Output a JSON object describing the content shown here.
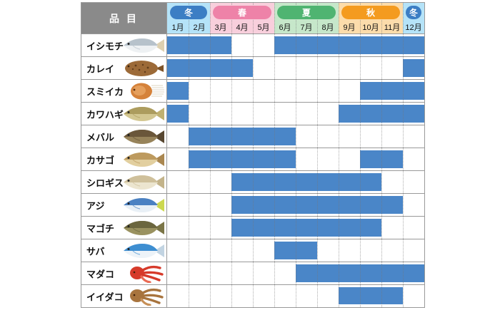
{
  "header": {
    "item_label": "品 目",
    "months": [
      "1月",
      "2月",
      "3月",
      "4月",
      "5月",
      "6月",
      "7月",
      "8月",
      "9月",
      "10月",
      "11月",
      "12月"
    ],
    "seasons": [
      {
        "id": "winter",
        "label": "冬",
        "start": 1,
        "end": 2,
        "pill_color": "#3c7ec4",
        "band_color": "#b5e3f8"
      },
      {
        "id": "spring",
        "label": "春",
        "start": 3,
        "end": 5,
        "pill_color": "#ee82a8",
        "band_color": "#f8cfdc"
      },
      {
        "id": "summer",
        "label": "夏",
        "start": 6,
        "end": 8,
        "pill_color": "#4fb471",
        "band_color": "#c6e7ca"
      },
      {
        "id": "autumn",
        "label": "秋",
        "start": 9,
        "end": 11,
        "pill_color": "#f49b1f",
        "band_color": "#fcdcab"
      },
      {
        "id": "winter-dec",
        "label": "冬",
        "start": 12,
        "end": 12,
        "pill_color": "#3c7ec4",
        "band_color": "#b5e3f8"
      }
    ]
  },
  "rows": [
    {
      "label": "イシモチ",
      "icon": "ishimochi-fish-icon",
      "type": "fish",
      "colors": {
        "body": "#b7c2cb",
        "belly": "#eef1f3",
        "tail": "#ddd0b0"
      },
      "bars": [
        [
          1,
          3
        ],
        [
          6,
          12
        ]
      ]
    },
    {
      "label": "カレイ",
      "icon": "karei-flatfish-icon",
      "type": "flatfish",
      "colors": {
        "body": "#9c6a38",
        "belly": "#b98a52",
        "tail": "#7e5327"
      },
      "bars": [
        [
          1,
          4
        ],
        [
          12,
          12
        ]
      ]
    },
    {
      "label": "スミイカ",
      "icon": "sumiika-cuttlefish-icon",
      "type": "cuttlefish",
      "colors": {
        "body": "#d5823a",
        "belly": "#f2b878",
        "tail": "#eae4d8"
      },
      "bars": [
        [
          1,
          1
        ],
        [
          10,
          12
        ]
      ]
    },
    {
      "label": "カワハギ",
      "icon": "kawahagi-fish-icon",
      "type": "fish",
      "colors": {
        "body": "#ac9c5e",
        "belly": "#d3c791",
        "tail": "#bfb070"
      },
      "bars": [
        [
          1,
          1
        ],
        [
          9,
          12
        ]
      ]
    },
    {
      "label": "メバル",
      "icon": "mebaru-fish-icon",
      "type": "fish",
      "colors": {
        "body": "#6a563a",
        "belly": "#97835a",
        "tail": "#584730"
      },
      "bars": [
        [
          2,
          6
        ]
      ]
    },
    {
      "label": "カサゴ",
      "icon": "kasago-fish-icon",
      "type": "fish",
      "colors": {
        "body": "#bd9a5e",
        "belly": "#e2cf9f",
        "tail": "#aa8750"
      },
      "bars": [
        [
          2,
          6
        ],
        [
          10,
          11
        ]
      ]
    },
    {
      "label": "シロギス",
      "icon": "shirogisu-fish-icon",
      "type": "fish",
      "colors": {
        "body": "#cfc09b",
        "belly": "#ece5cf",
        "tail": "#c3b38a"
      },
      "bars": [
        [
          4,
          10
        ]
      ]
    },
    {
      "label": "アジ",
      "icon": "aji-fish-icon",
      "type": "fish",
      "colors": {
        "body": "#4b81c2",
        "belly": "#e9f0f6",
        "tail": "#ccd84f"
      },
      "bars": [
        [
          4,
          11
        ]
      ]
    },
    {
      "label": "マゴチ",
      "icon": "magochi-fish-icon",
      "type": "fish",
      "colors": {
        "body": "#6b663e",
        "belly": "#9a9260",
        "tail": "#7b7547"
      },
      "bars": [
        [
          4,
          10
        ]
      ]
    },
    {
      "label": "サバ",
      "icon": "saba-fish-icon",
      "type": "fish",
      "colors": {
        "body": "#3e8ed1",
        "belly": "#edf3f8",
        "tail": "#c2d4e2"
      },
      "bars": [
        [
          6,
          7
        ]
      ]
    },
    {
      "label": "マダコ",
      "icon": "madako-octopus-icon",
      "type": "octopus",
      "colors": {
        "body": "#d63a2a",
        "belly": "#ea6a54"
      },
      "bars": [
        [
          7,
          12
        ]
      ]
    },
    {
      "label": "イイダコ",
      "icon": "iidako-octopus-icon",
      "type": "octopus",
      "colors": {
        "body": "#a8743e",
        "belly": "#c79057"
      },
      "bars": [
        [
          9,
          11
        ]
      ]
    }
  ],
  "colors": {
    "bar": "#4a86c8",
    "border": "#999999",
    "grid_dotted": "#777777",
    "item_header_bg": "#8a8a8a",
    "text": "#111111"
  },
  "chart_data": {
    "type": "table",
    "title": "",
    "description": "Seasonal availability calendar (gantt-style): blue bars mark in-season months for each fish item",
    "columns": [
      "1月",
      "2月",
      "3月",
      "4月",
      "5月",
      "6月",
      "7月",
      "8月",
      "9月",
      "10月",
      "11月",
      "12月"
    ],
    "season_groups": [
      {
        "label": "冬",
        "months": [
          1,
          2
        ]
      },
      {
        "label": "春",
        "months": [
          3,
          4,
          5
        ]
      },
      {
        "label": "夏",
        "months": [
          6,
          7,
          8
        ]
      },
      {
        "label": "秋",
        "months": [
          9,
          10,
          11
        ]
      },
      {
        "label": "冬",
        "months": [
          12
        ]
      }
    ],
    "rows": [
      {
        "label": "イシモチ",
        "active_months": [
          1,
          2,
          3,
          6,
          7,
          8,
          9,
          10,
          11,
          12
        ]
      },
      {
        "label": "カレイ",
        "active_months": [
          1,
          2,
          3,
          4,
          12
        ]
      },
      {
        "label": "スミイカ",
        "active_months": [
          1,
          10,
          11,
          12
        ]
      },
      {
        "label": "カワハギ",
        "active_months": [
          1,
          9,
          10,
          11,
          12
        ]
      },
      {
        "label": "メバル",
        "active_months": [
          2,
          3,
          4,
          5,
          6
        ]
      },
      {
        "label": "カサゴ",
        "active_months": [
          2,
          3,
          4,
          5,
          6,
          10,
          11
        ]
      },
      {
        "label": "シロギス",
        "active_months": [
          4,
          5,
          6,
          7,
          8,
          9,
          10
        ]
      },
      {
        "label": "アジ",
        "active_months": [
          4,
          5,
          6,
          7,
          8,
          9,
          10,
          11
        ]
      },
      {
        "label": "マゴチ",
        "active_months": [
          4,
          5,
          6,
          7,
          8,
          9,
          10
        ]
      },
      {
        "label": "サバ",
        "active_months": [
          6,
          7
        ]
      },
      {
        "label": "マダコ",
        "active_months": [
          7,
          8,
          9,
          10,
          11,
          12
        ]
      },
      {
        "label": "イイダコ",
        "active_months": [
          9,
          10,
          11
        ]
      }
    ]
  }
}
